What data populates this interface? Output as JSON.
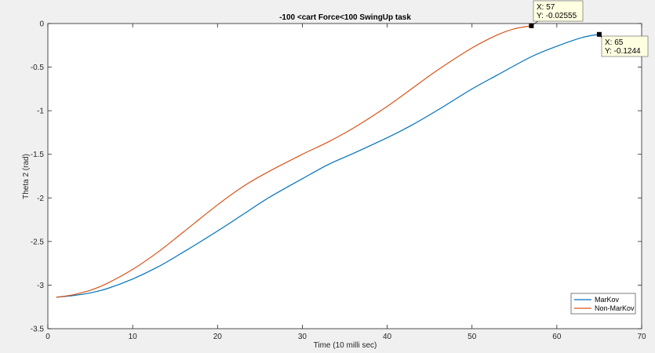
{
  "chart_data": {
    "type": "line",
    "title": "-100 <cart Force<100    SwingUp task",
    "xlabel": "Time (10 milli sec)",
    "ylabel": "Theta 2 (rad)",
    "xlim": [
      0,
      70
    ],
    "ylim": [
      -3.5,
      0
    ],
    "xticks": [
      0,
      10,
      20,
      30,
      40,
      50,
      60,
      70
    ],
    "yticks": [
      -3.5,
      -3,
      -2.5,
      -2,
      -1.5,
      -1,
      -0.5,
      0
    ],
    "xtick_labels": [
      "0",
      "10",
      "20",
      "30",
      "40",
      "50",
      "60",
      "70"
    ],
    "ytick_labels": [
      "-3.5",
      "-3",
      "-2.5",
      "-2",
      "-1.5",
      "-1",
      "-0.5",
      "0"
    ],
    "grid": false,
    "legend_position": "bottom-right",
    "series": [
      {
        "name": "MarKov",
        "color": "#0072bd",
        "x": [
          1,
          3,
          5,
          7,
          10,
          13,
          16,
          20,
          23,
          26,
          30,
          33,
          36,
          40,
          43,
          46,
          50,
          53,
          57,
          60,
          63,
          65
        ],
        "y": [
          -3.14,
          -3.12,
          -3.09,
          -3.04,
          -2.93,
          -2.79,
          -2.62,
          -2.38,
          -2.19,
          -2.0,
          -1.78,
          -1.62,
          -1.49,
          -1.31,
          -1.16,
          -0.99,
          -0.75,
          -0.59,
          -0.38,
          -0.26,
          -0.16,
          -0.1244
        ]
      },
      {
        "name": "Non-MarKov",
        "color": "#d95319",
        "x": [
          1,
          3,
          5,
          7,
          10,
          13,
          16,
          20,
          23,
          26,
          30,
          33,
          36,
          40,
          43,
          46,
          50,
          53,
          55,
          57
        ],
        "y": [
          -3.14,
          -3.11,
          -3.06,
          -2.98,
          -2.82,
          -2.62,
          -2.39,
          -2.08,
          -1.87,
          -1.7,
          -1.5,
          -1.36,
          -1.2,
          -0.95,
          -0.74,
          -0.53,
          -0.28,
          -0.13,
          -0.06,
          -0.02555
        ]
      }
    ],
    "datatips": [
      {
        "series": "Non-MarKov",
        "x": 57,
        "y": -0.02555,
        "x_text": "X: 57",
        "y_text": "Y: -0.02555"
      },
      {
        "series": "MarKov",
        "x": 65,
        "y": -0.1244,
        "x_text": "X: 65",
        "y_text": "Y: -0.1244"
      }
    ]
  }
}
